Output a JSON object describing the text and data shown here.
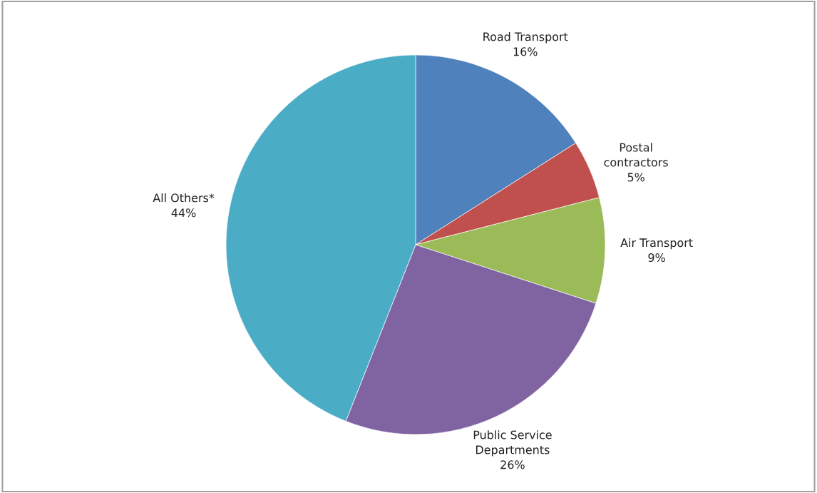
{
  "chart_data": {
    "type": "pie",
    "categories": [
      "Road Transport",
      "Postal\ncontractors",
      "Air Transport",
      "Public Service\nDepartments",
      "All Others*"
    ],
    "values": [
      16,
      5,
      9,
      26,
      44
    ],
    "value_labels": [
      "16%",
      "5%",
      "9%",
      "26%",
      "44%"
    ],
    "colors": [
      "#4f81bd",
      "#c0504d",
      "#9bbb59",
      "#8064a2",
      "#4bacc6"
    ],
    "legend": false
  }
}
